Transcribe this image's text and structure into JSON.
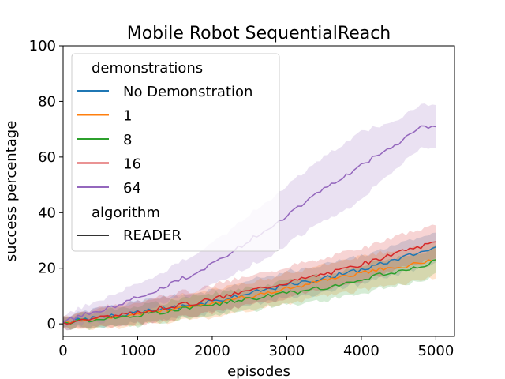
{
  "chart_data": {
    "type": "line",
    "title": "Mobile Robot SequentialReach",
    "xlabel": "episodes",
    "ylabel": "success percentage",
    "xlim": [
      0,
      5250
    ],
    "ylim": [
      -4.5,
      100
    ],
    "xticks": [
      0,
      1000,
      2000,
      3000,
      4000,
      5000
    ],
    "yticks": [
      0,
      20,
      40,
      60,
      80,
      100
    ],
    "grid": false,
    "legend": {
      "placement": "top-left",
      "hue_title": "demonstrations",
      "style_title": "algorithm",
      "style_entries": [
        {
          "label": "READER",
          "color": "#333333"
        }
      ]
    },
    "x": [
      0,
      250,
      500,
      750,
      1000,
      1250,
      1500,
      1750,
      2000,
      2250,
      2500,
      2750,
      3000,
      3250,
      3500,
      3750,
      4000,
      4250,
      4500,
      4750,
      5000
    ],
    "series": [
      {
        "name": "No Demonstration",
        "color": "#1f77b4",
        "values": [
          0.5,
          1.5,
          2.5,
          3.0,
          4.0,
          5.0,
          6.0,
          7.0,
          8.0,
          9.5,
          11.0,
          12.5,
          14.0,
          15.0,
          16.5,
          18.0,
          19.5,
          21.5,
          23.5,
          25.5,
          27.5
        ],
        "band": [
          2,
          3,
          3.5,
          3.5,
          4,
          4,
          4,
          4,
          4,
          4,
          4.5,
          4.5,
          4.5,
          5,
          5,
          5,
          5,
          5,
          5.5,
          5.5,
          5.5
        ]
      },
      {
        "name": "1",
        "color": "#ff7f0e",
        "values": [
          0.5,
          1.5,
          2.0,
          2.5,
          3.5,
          4.5,
          5.5,
          6.5,
          7.5,
          8.5,
          10.0,
          11.0,
          12.5,
          14.0,
          15.5,
          17.0,
          18.5,
          19.5,
          20.5,
          21.5,
          23.5
        ],
        "band": [
          2,
          3,
          3.5,
          4,
          4,
          4.5,
          4.5,
          4.5,
          5,
          5,
          5,
          5,
          5.5,
          5.5,
          5.5,
          6,
          6,
          6,
          6,
          6,
          6.5
        ]
      },
      {
        "name": "8",
        "color": "#2ca02c",
        "values": [
          0.5,
          1.0,
          1.8,
          2.5,
          3.0,
          4.0,
          5.0,
          6.0,
          7.0,
          8.0,
          9.0,
          10.0,
          11.0,
          12.0,
          13.0,
          14.5,
          16.0,
          17.5,
          19.0,
          20.5,
          22.5
        ],
        "band": [
          1.5,
          2.5,
          3,
          3,
          3.5,
          3.5,
          3.5,
          4,
          4,
          4,
          4,
          4,
          4.5,
          4.5,
          4.5,
          4.5,
          5,
          5,
          5,
          5,
          5
        ]
      },
      {
        "name": "16",
        "color": "#d62728",
        "values": [
          0.5,
          1.5,
          2.5,
          3.0,
          4.0,
          5.5,
          6.5,
          7.5,
          9.0,
          10.5,
          12.0,
          13.5,
          15.0,
          16.5,
          18.0,
          19.5,
          21.5,
          23.5,
          25.5,
          27.5,
          29.5
        ],
        "band": [
          2,
          3,
          3.5,
          4,
          4,
          4.5,
          4.5,
          4.5,
          5,
          5,
          5,
          5.5,
          5.5,
          5.5,
          5.5,
          6,
          6,
          6,
          6,
          6,
          6
        ]
      },
      {
        "name": "64",
        "color": "#9467bd",
        "values": [
          0.5,
          3.0,
          5.0,
          7.0,
          9.5,
          12.0,
          15.0,
          18.0,
          21.5,
          25.5,
          30.0,
          34.5,
          38.5,
          44.0,
          49.0,
          52.5,
          57.0,
          61.5,
          65.0,
          70.5,
          71.5
        ],
        "band": [
          2,
          3,
          4,
          4.5,
          5,
          5.5,
          6,
          7,
          7.5,
          8.5,
          9.5,
          10,
          10.5,
          11,
          11.5,
          12,
          12.5,
          10,
          8.5,
          8,
          7.5
        ]
      }
    ]
  }
}
